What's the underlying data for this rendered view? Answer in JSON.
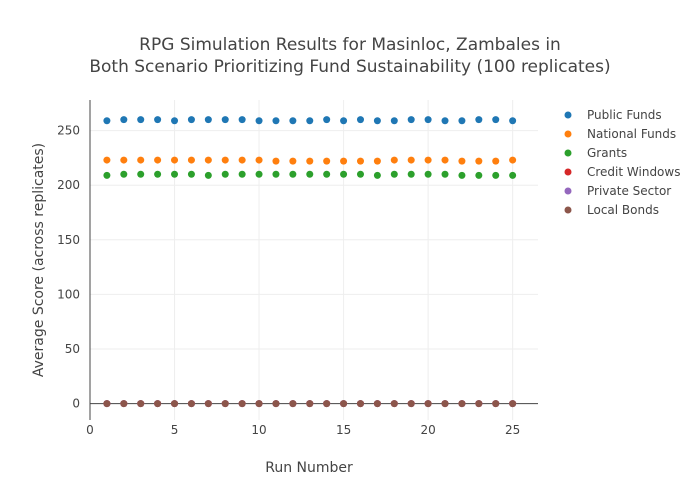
{
  "chart_data": {
    "type": "scatter",
    "title_lines": [
      "RPG Simulation Results for Masinloc, Zambales in",
      "Both Scenario Prioritizing Fund Sustainability (100 replicates)"
    ],
    "xlabel": "Run Number",
    "ylabel": "Average Score (across replicates)",
    "xlim": [
      0,
      26.5
    ],
    "ylim": [
      -15,
      278
    ],
    "x_ticks": [
      0,
      5,
      10,
      15,
      20,
      25
    ],
    "y_ticks": [
      0,
      50,
      100,
      150,
      200,
      250
    ],
    "grid": true,
    "legend_position": "top-right",
    "x": [
      1,
      2,
      3,
      4,
      5,
      6,
      7,
      8,
      9,
      10,
      11,
      12,
      13,
      14,
      15,
      16,
      17,
      18,
      19,
      20,
      21,
      22,
      23,
      24,
      25
    ],
    "series": [
      {
        "name": "Public Funds",
        "color": "#1f77b4",
        "values": [
          259,
          260,
          260,
          260,
          259,
          260,
          260,
          260,
          260,
          259,
          259,
          259,
          259,
          260,
          259,
          260,
          259,
          259,
          260,
          260,
          259,
          259,
          260,
          260,
          259
        ]
      },
      {
        "name": "National Funds",
        "color": "#ff7f0e",
        "values": [
          223,
          223,
          223,
          223,
          223,
          223,
          223,
          223,
          223,
          223,
          222,
          222,
          222,
          222,
          222,
          222,
          222,
          223,
          223,
          223,
          223,
          222,
          222,
          222,
          223
        ]
      },
      {
        "name": "Grants",
        "color": "#2ca02c",
        "values": [
          209,
          210,
          210,
          210,
          210,
          210,
          209,
          210,
          210,
          210,
          210,
          210,
          210,
          210,
          210,
          210,
          209,
          210,
          210,
          210,
          210,
          209,
          209,
          209,
          209
        ]
      },
      {
        "name": "Credit Windows",
        "color": "#d62728",
        "values": [
          0,
          0,
          0,
          0,
          0,
          0,
          0,
          0,
          0,
          0,
          0,
          0,
          0,
          0,
          0,
          0,
          0,
          0,
          0,
          0,
          0,
          0,
          0,
          0,
          0
        ]
      },
      {
        "name": "Private Sector",
        "color": "#9467bd",
        "values": [
          0,
          0,
          0,
          0,
          0,
          0,
          0,
          0,
          0,
          0,
          0,
          0,
          0,
          0,
          0,
          0,
          0,
          0,
          0,
          0,
          0,
          0,
          0,
          0,
          0
        ]
      },
      {
        "name": "Local Bonds",
        "color": "#8c564b",
        "values": [
          0,
          0,
          0,
          0,
          0,
          0,
          0,
          0,
          0,
          0,
          0,
          0,
          0,
          0,
          0,
          0,
          0,
          0,
          0,
          0,
          0,
          0,
          0,
          0,
          0
        ]
      }
    ]
  }
}
